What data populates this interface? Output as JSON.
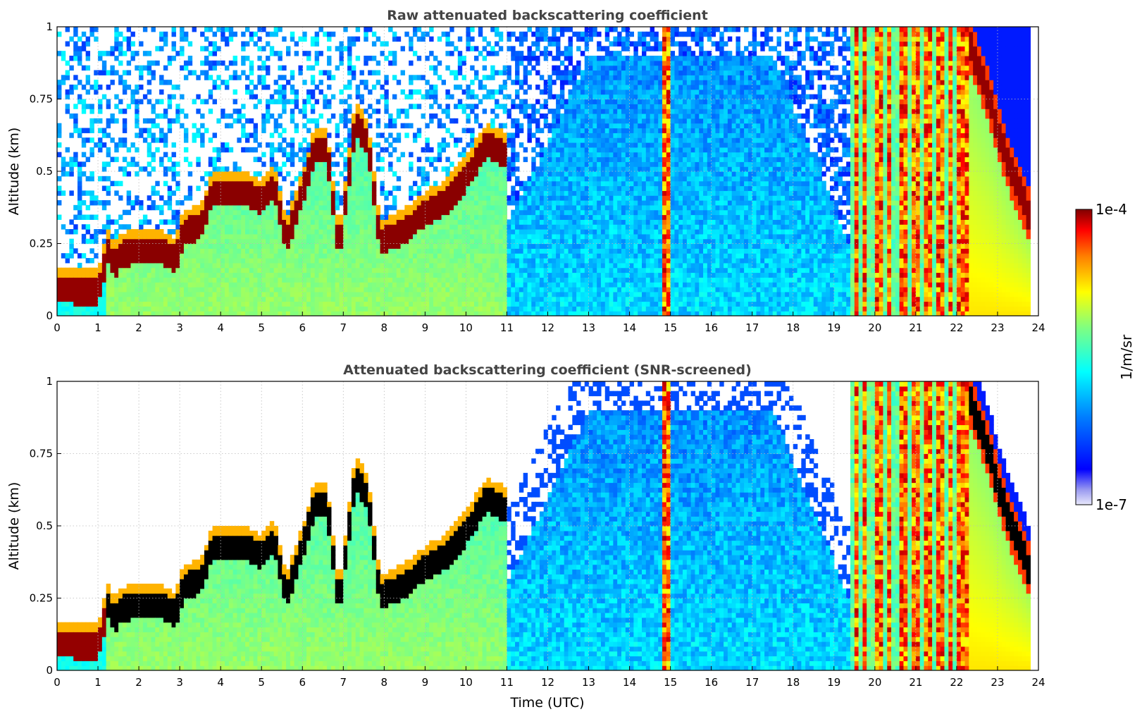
{
  "chart_data": [
    {
      "type": "heatmap",
      "title": "Raw attenuated backscattering coefficient",
      "xlabel": "",
      "ylabel": "Altitude (km)",
      "xlim": [
        0,
        24
      ],
      "ylim": [
        0,
        1
      ],
      "xticks": [
        "0",
        "1",
        "2",
        "3",
        "4",
        "5",
        "6",
        "7",
        "8",
        "9",
        "10",
        "11",
        "12",
        "13",
        "14",
        "15",
        "16",
        "17",
        "18",
        "19",
        "20",
        "21",
        "22",
        "23",
        "24"
      ],
      "yticks": [
        "0",
        "0.25",
        "0.5",
        "0.75",
        "1"
      ],
      "grid": true,
      "screened": false,
      "layer_top_km": [
        [
          0.0,
          0.12
        ],
        [
          0.5,
          0.11
        ],
        [
          1.0,
          0.11
        ],
        [
          1.25,
          0.25
        ],
        [
          1.4,
          0.2
        ],
        [
          1.6,
          0.24
        ],
        [
          2.0,
          0.25
        ],
        [
          2.5,
          0.25
        ],
        [
          2.9,
          0.22
        ],
        [
          3.1,
          0.32
        ],
        [
          3.5,
          0.33
        ],
        [
          3.8,
          0.45
        ],
        [
          4.2,
          0.45
        ],
        [
          4.6,
          0.45
        ],
        [
          5.0,
          0.42
        ],
        [
          5.3,
          0.48
        ],
        [
          5.6,
          0.28
        ],
        [
          6.0,
          0.45
        ],
        [
          6.3,
          0.6
        ],
        [
          6.6,
          0.6
        ],
        [
          6.9,
          0.24
        ],
        [
          7.3,
          0.7
        ],
        [
          7.6,
          0.62
        ],
        [
          7.9,
          0.28
        ],
        [
          8.5,
          0.32
        ],
        [
          9.0,
          0.38
        ],
        [
          9.5,
          0.42
        ],
        [
          10.0,
          0.5
        ],
        [
          10.5,
          0.62
        ],
        [
          11.0,
          0.58
        ],
        [
          22.3,
          0.95
        ],
        [
          22.8,
          0.75
        ],
        [
          23.2,
          0.55
        ],
        [
          23.8,
          0.34
        ]
      ],
      "vertical_bands_utc": [
        14.9,
        19.55,
        19.75,
        20.1,
        20.35,
        20.7,
        21.0,
        21.3,
        21.6,
        21.85,
        22.1,
        22.3
      ],
      "colorbar": {
        "label": "1/m/sr",
        "min": "1e-7",
        "max": "1e-4",
        "scale": "log"
      }
    },
    {
      "type": "heatmap",
      "title": "Attenuated backscattering coefficient (SNR-screened)",
      "xlabel": "Time (UTC)",
      "ylabel": "Altitude (km)",
      "xlim": [
        0,
        24
      ],
      "ylim": [
        0,
        1
      ],
      "xticks": [
        "0",
        "1",
        "2",
        "3",
        "4",
        "5",
        "6",
        "7",
        "8",
        "9",
        "10",
        "11",
        "12",
        "13",
        "14",
        "15",
        "16",
        "17",
        "18",
        "19",
        "20",
        "21",
        "22",
        "23",
        "24"
      ],
      "yticks": [
        "0",
        "0.25",
        "0.5",
        "0.75",
        "1"
      ],
      "grid": true,
      "screened": true,
      "vertical_bands_utc": [
        14.9,
        19.55,
        19.75,
        20.1,
        20.35,
        20.7,
        21.0,
        21.3,
        21.6,
        21.85,
        22.1,
        22.3
      ],
      "colorbar": {
        "label": "1/m/sr",
        "min": "1e-7",
        "max": "1e-4",
        "scale": "log"
      }
    }
  ],
  "colorbar": {
    "label": "1/m/sr",
    "max_label": "1e-4",
    "min_label": "1e-7"
  },
  "colors": {
    "jet": [
      "#00008f",
      "#0000ff",
      "#0080ff",
      "#00ffff",
      "#80ff80",
      "#ffff00",
      "#ff8000",
      "#ff0000",
      "#800000"
    ],
    "low": "#e4e4fa",
    "saturated_screened": "#000000",
    "grid": "#bbbbbb"
  }
}
